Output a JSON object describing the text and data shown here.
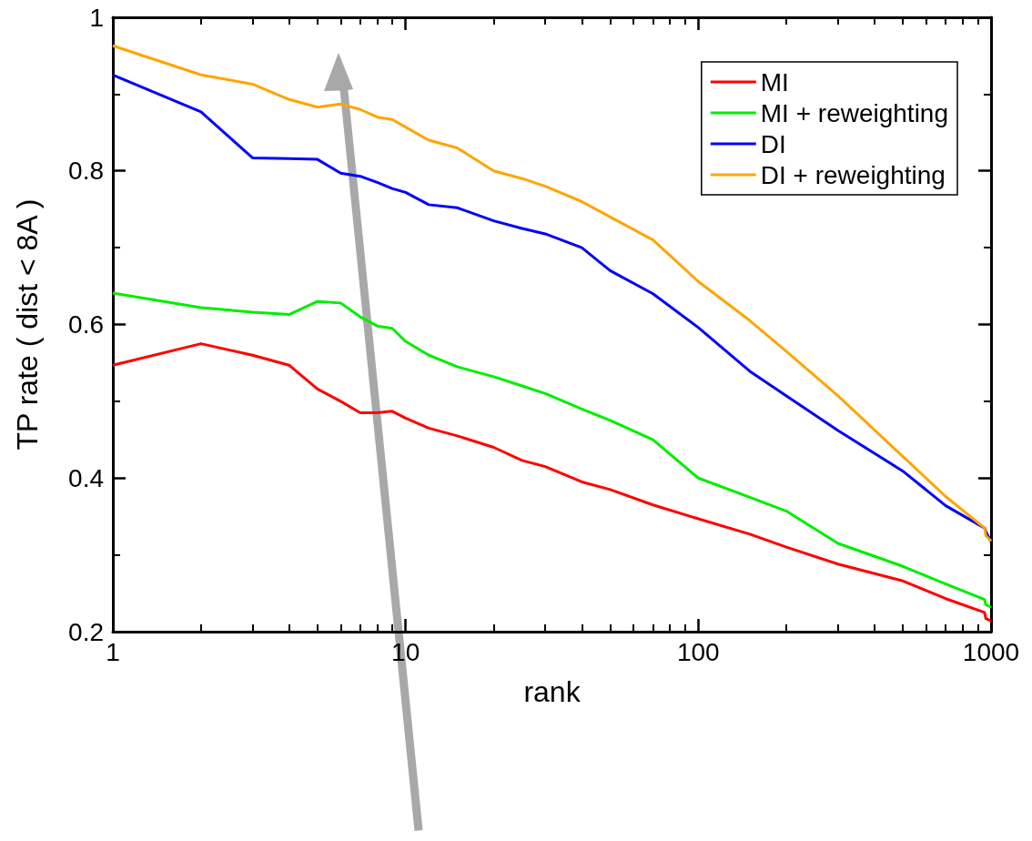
{
  "chart_data": {
    "type": "line",
    "xlabel": "rank",
    "ylabel": "TP rate ( dist < 8A )",
    "log": "x",
    "xlim": [
      1,
      1000
    ],
    "xticks": [
      1,
      10,
      100,
      1000
    ],
    "ylim": [
      0.2,
      1
    ],
    "yticks": [
      0.2,
      0.4,
      0.6,
      0.8,
      1
    ],
    "grid": false,
    "legend": "top right",
    "marker": "none",
    "line_style": "solid",
    "x": [
      1,
      2,
      3,
      4,
      5,
      6,
      7,
      8,
      9,
      10,
      12,
      15,
      20,
      25,
      30,
      40,
      50,
      70,
      100,
      150,
      200,
      300,
      500,
      700,
      950,
      960,
      1000
    ],
    "series": [
      {
        "name": "MI",
        "color": "#ff0000",
        "values": [
          0.547,
          0.575,
          0.56,
          0.547,
          0.516,
          0.5,
          0.485,
          0.485,
          0.487,
          0.478,
          0.465,
          0.455,
          0.44,
          0.423,
          0.415,
          0.395,
          0.385,
          0.365,
          0.347,
          0.327,
          0.31,
          0.288,
          0.266,
          0.243,
          0.225,
          0.217,
          0.214
        ]
      },
      {
        "name": "MI + reweighting",
        "color": "#00ee00",
        "values": [
          0.641,
          0.622,
          0.616,
          0.613,
          0.63,
          0.628,
          0.61,
          0.598,
          0.595,
          0.578,
          0.56,
          0.545,
          0.532,
          0.52,
          0.51,
          0.49,
          0.475,
          0.45,
          0.4,
          0.375,
          0.357,
          0.315,
          0.285,
          0.262,
          0.242,
          0.235,
          0.232
        ]
      },
      {
        "name": "DI",
        "color": "#0000ff",
        "values": [
          0.925,
          0.877,
          0.817,
          0.816,
          0.815,
          0.797,
          0.793,
          0.785,
          0.777,
          0.772,
          0.756,
          0.752,
          0.735,
          0.725,
          0.718,
          0.7,
          0.67,
          0.64,
          0.596,
          0.539,
          0.507,
          0.462,
          0.409,
          0.364,
          0.335,
          0.33,
          0.317
        ]
      },
      {
        "name": "DI + reweighting",
        "color": "#ffa500",
        "values": [
          0.963,
          0.925,
          0.913,
          0.893,
          0.883,
          0.887,
          0.88,
          0.87,
          0.867,
          0.857,
          0.84,
          0.83,
          0.8,
          0.79,
          0.78,
          0.76,
          0.74,
          0.71,
          0.656,
          0.605,
          0.565,
          0.507,
          0.428,
          0.376,
          0.335,
          0.325,
          0.318
        ]
      }
    ]
  }
}
